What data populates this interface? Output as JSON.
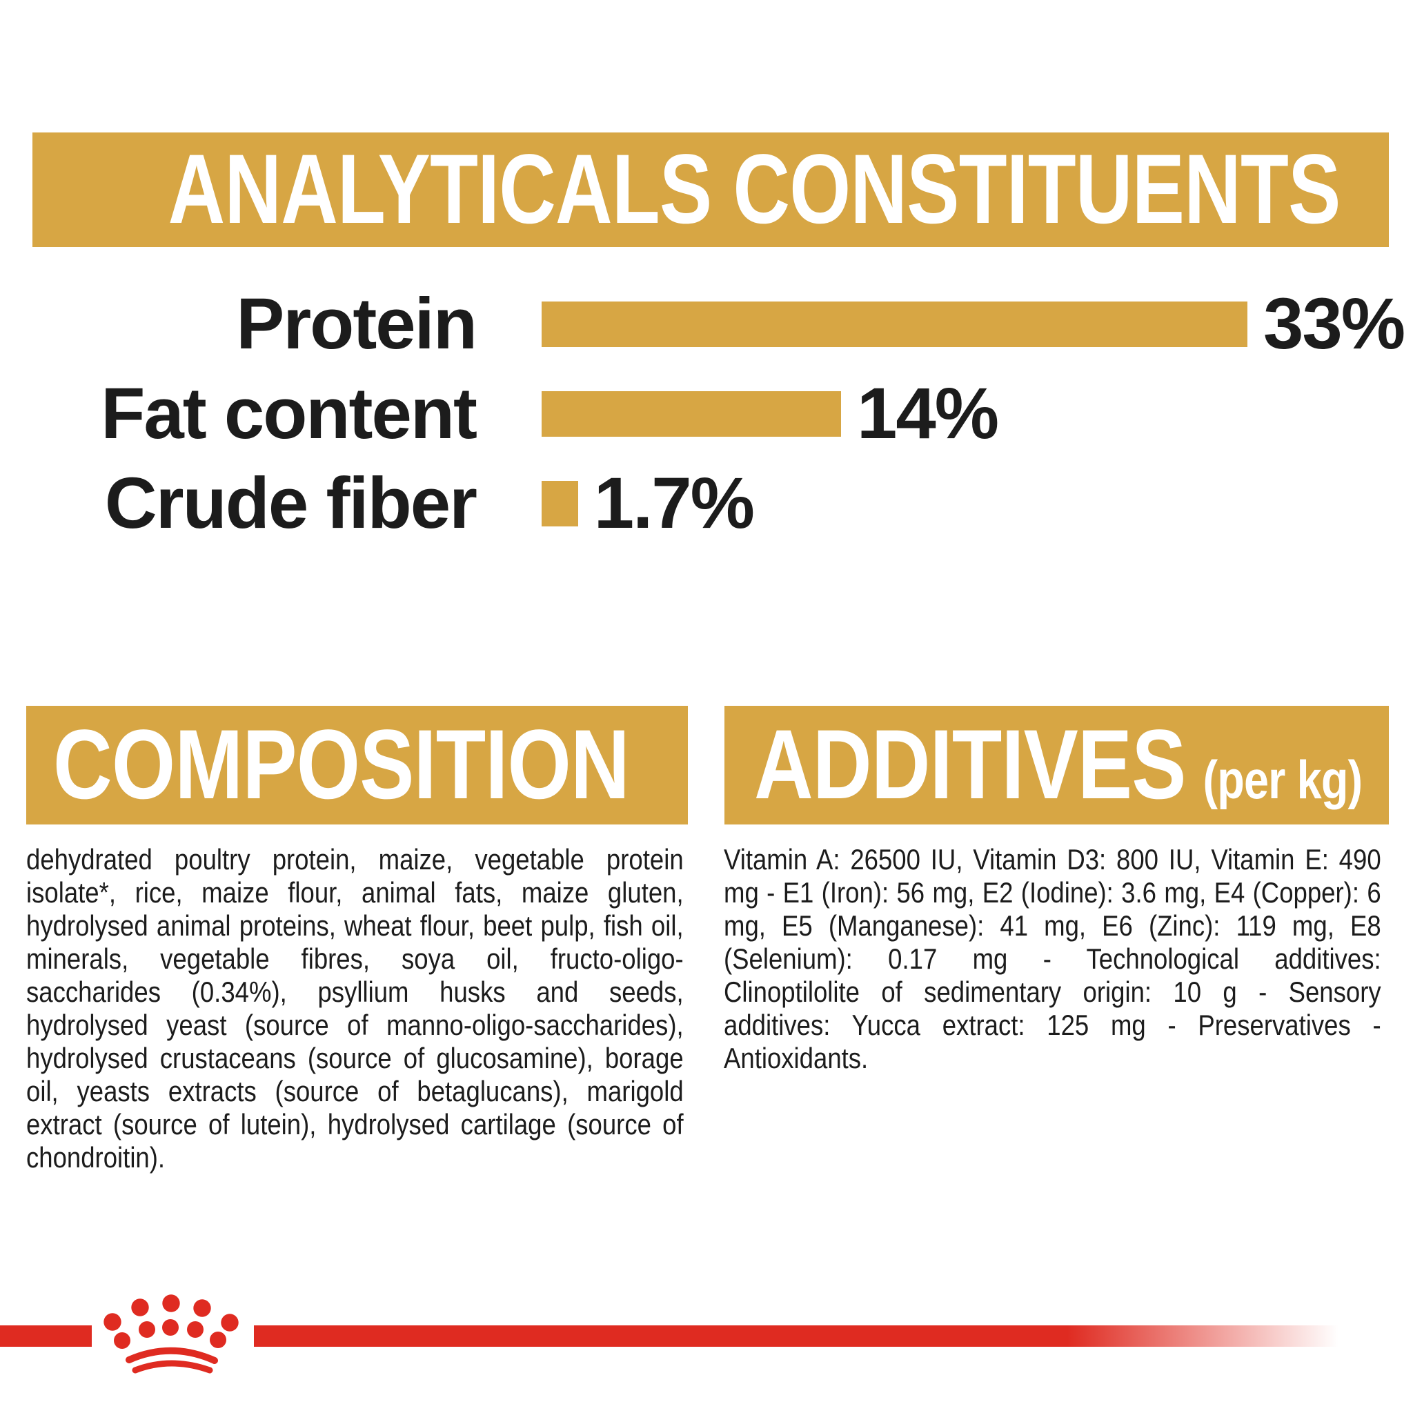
{
  "colors": {
    "gold": "#D7A644",
    "red": "#DF2B21",
    "ink": "#1C1C1C",
    "white": "#FFFFFF",
    "background": "#FFFFFF"
  },
  "analyticals_header": {
    "title": "ANALYTICALS CONSTITUENTS"
  },
  "chart_data": {
    "type": "bar",
    "orientation": "horizontal",
    "title": "ANALYTICALS CONSTITUENTS",
    "categories": [
      "Protein",
      "Fat content",
      "Crude fiber"
    ],
    "values": [
      33,
      14,
      1.7
    ],
    "value_labels": [
      "33%",
      "14%",
      "1.7%"
    ],
    "unit": "%",
    "bar_color": "#D7A644",
    "label_color": "#1C1C1C",
    "xlim": [
      0,
      40
    ],
    "grid": false,
    "legend": false
  },
  "composition": {
    "title": "COMPOSITION",
    "body": "dehydrated poultry protein, maize, vegetable protein isolate*, rice, maize flour, animal fats, maize gluten, hydrolysed animal proteins, wheat flour, beet pulp, fish oil, minerals, vegetable fibres, soya oil, fructo-oligo-saccharides (0.34%), psyllium husks and seeds, hydrolysed yeast (source of manno-oligo-saccharides), hydrolysed crustaceans (source of glucosamine), borage oil, yeasts extracts (source of betaglucans), marigold extract (source of lutein), hydrolysed cartilage (source of chondroitin)."
  },
  "additives": {
    "title": "ADDITIVES",
    "unit_label": "(per kg)",
    "body": "Vitamin A: 26500 IU, Vitamin D3: 800 IU, Vitamin E: 490 mg - E1 (Iron): 56 mg, E2 (Iodine): 3.6 mg, E4 (Copper): 6 mg, E5 (Manganese): 41 mg, E6 (Zinc): 119 mg, E8 (Selenium): 0.17 mg - Technological additives: Clinoptilolite of sedimentary origin: 10 g - Sensory additives: Yucca extract: 125 mg - Preservatives - Antioxidants.",
    "body_start": "Vitamin A: 26500 IU"
  },
  "footer": {
    "logo": "royal-canin-crown-paw-logo"
  }
}
